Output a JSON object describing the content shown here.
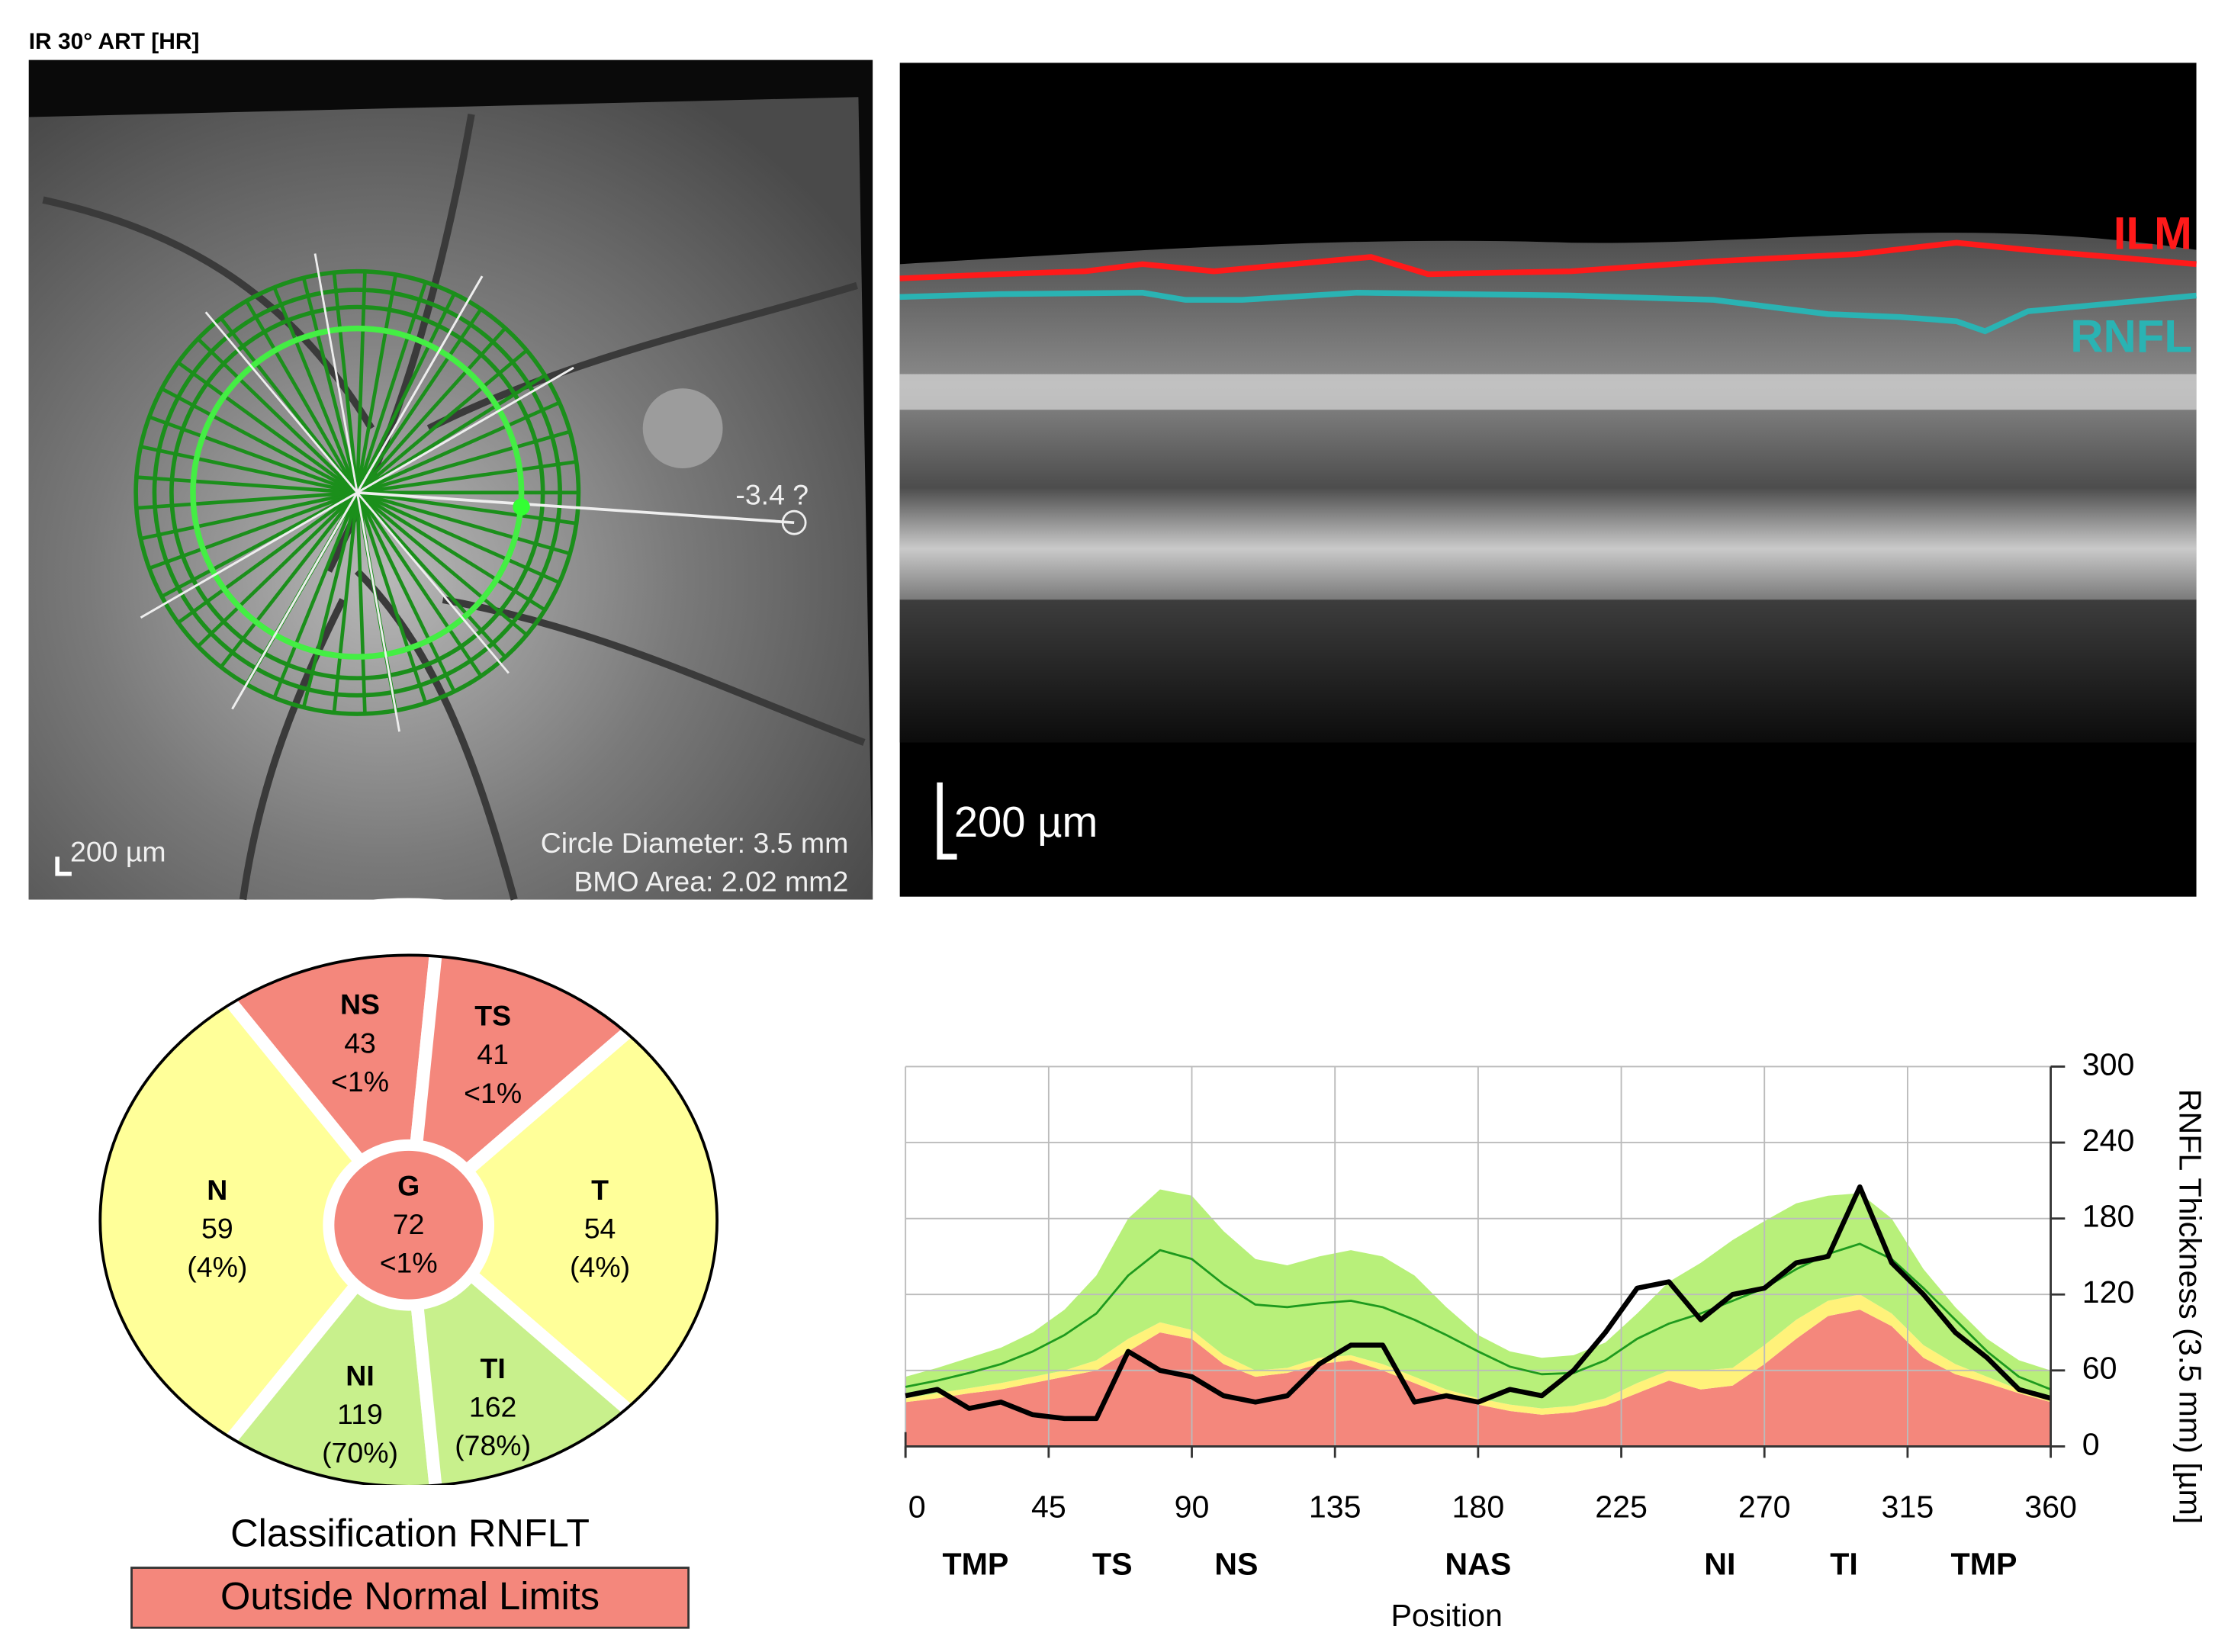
{
  "header": {
    "title": "IR 30° ART [HR]"
  },
  "fundus": {
    "marker": "-3.4 ?",
    "scale": "200 µm",
    "circle_diameter": "Circle Diameter: 3.5 mm",
    "bmo_area": "BMO Area: 2.02 mm2"
  },
  "bscan": {
    "layers": [
      {
        "name": "ILM",
        "color": "#ff1a1a"
      },
      {
        "name": "RNFL",
        "color": "#2ab3b3"
      }
    ],
    "scale": "200 µm"
  },
  "classification": {
    "sectors": [
      {
        "label": "NS",
        "value": 43,
        "percentile": "<1%",
        "color": "#f4877c"
      },
      {
        "label": "TS",
        "value": 41,
        "percentile": "<1%",
        "color": "#f4877c"
      },
      {
        "label": "N",
        "value": 59,
        "percentile": "(4%)",
        "color": "#ffff99"
      },
      {
        "label": "T",
        "value": 54,
        "percentile": "(4%)",
        "color": "#ffff99"
      },
      {
        "label": "NI",
        "value": 119,
        "percentile": "(70%)",
        "color": "#c8f08c"
      },
      {
        "label": "TI",
        "value": 162,
        "percentile": "(78%)",
        "color": "#c8f08c"
      },
      {
        "label": "G",
        "value": 72,
        "percentile": "<1%",
        "color": "#f4877c"
      }
    ],
    "title": "Classification RNFLT",
    "result": "Outside Normal Limits",
    "result_color": "#f4877c"
  },
  "chart_data": {
    "type": "area",
    "x": [
      0,
      10,
      20,
      30,
      40,
      50,
      60,
      70,
      80,
      90,
      100,
      110,
      120,
      130,
      140,
      150,
      160,
      170,
      180,
      190,
      200,
      210,
      220,
      230,
      240,
      250,
      260,
      270,
      280,
      290,
      300,
      310,
      320,
      330,
      340,
      350,
      360
    ],
    "series": [
      {
        "color": "#f4877c",
        "fill": true,
        "values": [
          35,
          38,
          42,
          45,
          50,
          55,
          60,
          75,
          90,
          85,
          65,
          55,
          58,
          65,
          68,
          60,
          50,
          40,
          33,
          28,
          25,
          27,
          32,
          42,
          52,
          45,
          48,
          65,
          85,
          103,
          108,
          95,
          70,
          57,
          50,
          42,
          35
        ]
      },
      {
        "color": "#fff27a",
        "fill": true,
        "values": [
          38,
          42,
          46,
          50,
          55,
          60,
          68,
          85,
          98,
          92,
          72,
          60,
          62,
          70,
          72,
          65,
          55,
          45,
          38,
          33,
          30,
          32,
          38,
          50,
          60,
          60,
          62,
          80,
          100,
          115,
          120,
          105,
          80,
          65,
          55,
          45,
          38
        ]
      },
      {
        "color": "#b8f07a",
        "fill": true,
        "values": [
          55,
          62,
          70,
          78,
          90,
          108,
          135,
          180,
          203,
          198,
          170,
          148,
          143,
          150,
          155,
          150,
          135,
          110,
          88,
          75,
          70,
          72,
          82,
          105,
          130,
          145,
          163,
          178,
          192,
          198,
          200,
          180,
          140,
          110,
          85,
          68,
          60
        ]
      },
      {
        "color": "#1e9a1e",
        "fill": false,
        "width": 1.5,
        "values": [
          47,
          52,
          58,
          65,
          75,
          88,
          105,
          135,
          155,
          148,
          128,
          112,
          110,
          113,
          115,
          110,
          100,
          88,
          75,
          63,
          57,
          58,
          68,
          85,
          97,
          105,
          115,
          125,
          140,
          152,
          160,
          148,
          125,
          100,
          75,
          55,
          45
        ]
      },
      {
        "color": "#000000",
        "fill": false,
        "width": 3.5,
        "values": [
          40,
          45,
          30,
          35,
          25,
          22,
          22,
          75,
          60,
          55,
          40,
          35,
          40,
          65,
          80,
          80,
          35,
          40,
          35,
          45,
          40,
          60,
          90,
          125,
          130,
          100,
          120,
          125,
          145,
          150,
          205,
          145,
          120,
          90,
          70,
          45,
          38
        ]
      }
    ],
    "xlim": [
      0,
      360
    ],
    "xticks": [
      0,
      45,
      90,
      135,
      180,
      225,
      270,
      315,
      360
    ],
    "ylim": [
      0,
      300
    ],
    "yticks": [
      0,
      60,
      120,
      180,
      240,
      300
    ],
    "xlabel": "Position",
    "ylabel": "RNFL Thickness (3.5 mm) [µm]",
    "sector_ticks": [
      {
        "value": 22,
        "label": "TMP"
      },
      {
        "value": 65,
        "label": "TS"
      },
      {
        "value": 104,
        "label": "NS"
      },
      {
        "value": 180,
        "label": "NAS"
      },
      {
        "value": 256,
        "label": "NI"
      },
      {
        "value": 295,
        "label": "TI"
      },
      {
        "value": 339,
        "label": "TMP"
      }
    ],
    "grid": true
  }
}
